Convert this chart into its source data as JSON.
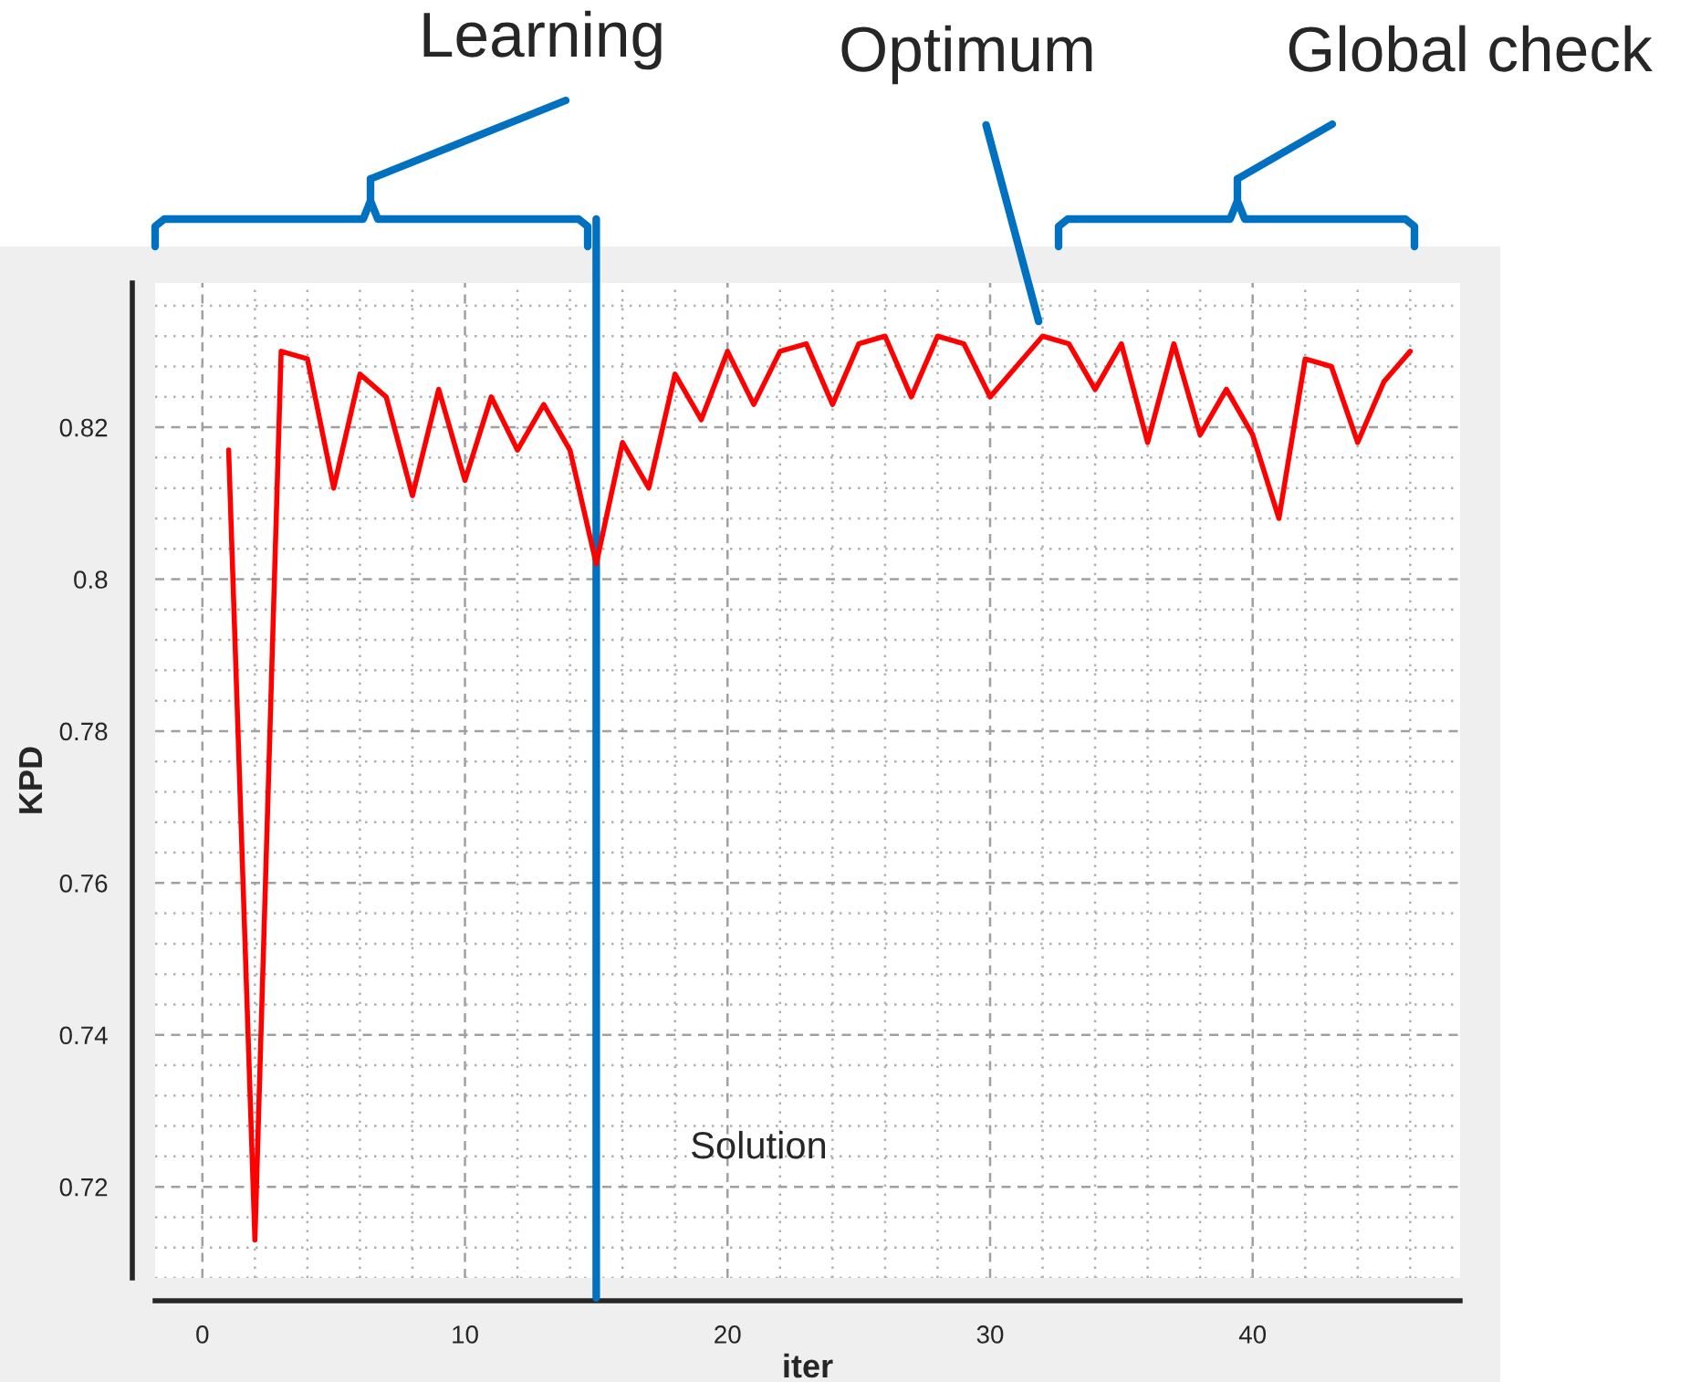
{
  "chart_data": {
    "type": "line",
    "x": [
      1,
      2,
      3,
      4,
      5,
      6,
      7,
      8,
      9,
      10,
      11,
      12,
      13,
      14,
      15,
      16,
      17,
      18,
      19,
      20,
      21,
      22,
      23,
      24,
      25,
      26,
      27,
      28,
      29,
      30,
      31,
      32,
      33,
      34,
      35,
      36,
      37,
      38,
      39,
      40,
      41,
      42,
      43,
      44,
      45,
      46
    ],
    "series": [
      {
        "color": "#ff0000",
        "values": [
          0.817,
          0.713,
          0.83,
          0.829,
          0.812,
          0.827,
          0.824,
          0.811,
          0.825,
          0.813,
          0.824,
          0.817,
          0.823,
          0.817,
          0.802,
          0.818,
          0.812,
          0.827,
          0.821,
          0.83,
          0.823,
          0.83,
          0.831,
          0.823,
          0.831,
          0.832,
          0.824,
          0.832,
          0.831,
          0.824,
          0.828,
          0.832,
          0.831,
          0.825,
          0.831,
          0.818,
          0.831,
          0.819,
          0.825,
          0.819,
          0.808,
          0.829,
          0.828,
          0.818,
          0.826,
          0.83
        ]
      }
    ],
    "xlabel": "iter",
    "ylabel": "KPD",
    "xlim": [
      -1.8,
      47.9
    ],
    "ylim": [
      0.708,
      0.839
    ],
    "xticks": [
      0,
      10,
      20,
      30,
      40
    ],
    "yticks": [
      0.72,
      0.74,
      0.76,
      0.78,
      0.8,
      0.82
    ],
    "grid": true,
    "marker": "none",
    "line_style": "solid",
    "legend": false,
    "ref_lines": [
      {
        "axis": "x",
        "value": 15,
        "label": "Solution",
        "color": "#0070c0"
      }
    ],
    "annotations": [
      "Learning",
      {
        "text": "Optimum",
        "x": 32,
        "y": 0.832
      },
      "Global check"
    ]
  }
}
